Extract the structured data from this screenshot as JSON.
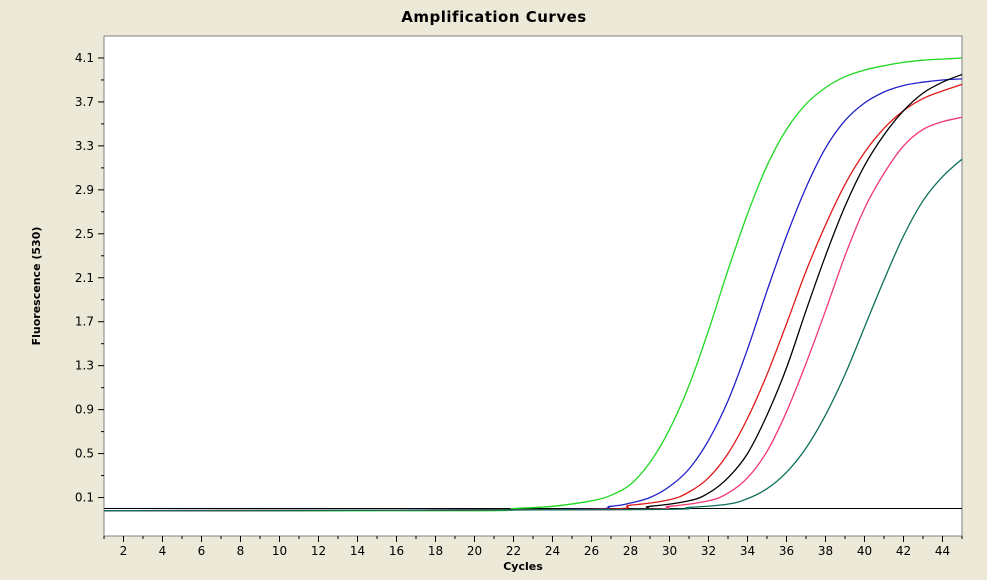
{
  "chart_data": {
    "type": "line",
    "title": "Amplification Curves",
    "xlabel": "Cycles",
    "ylabel": "Fluorescence (530)",
    "xlim": [
      1,
      45
    ],
    "ylim": [
      -0.25,
      4.3
    ],
    "x_ticks": [
      2,
      4,
      6,
      8,
      10,
      12,
      14,
      16,
      18,
      20,
      22,
      24,
      26,
      28,
      30,
      32,
      34,
      36,
      38,
      40,
      42,
      44
    ],
    "y_ticks": [
      0.1,
      0.5,
      0.9,
      1.3,
      1.7,
      2.1,
      2.5,
      2.9,
      3.3,
      3.7,
      4.1
    ],
    "y_tick_labels": [
      "0.1",
      "0.5",
      "0.9",
      "1.3",
      "1.7",
      "2.1",
      "2.5",
      "2.9",
      "3.3",
      "3.7",
      "4.1"
    ],
    "threshold": 0,
    "grid": false,
    "colors": {
      "page_background": "#ece9d8",
      "plot_background": "#ffffff",
      "threshold": "#000000"
    },
    "series": [
      {
        "color": "#1fd81f",
        "x": [
          1,
          20,
          22,
          24,
          26,
          27,
          28,
          29,
          30,
          31,
          32,
          33,
          34,
          35,
          36,
          37,
          38,
          39,
          40,
          41,
          42,
          43,
          44,
          45
        ],
        "y": [
          -0.02,
          -0.02,
          0.0,
          0.02,
          0.07,
          0.12,
          0.22,
          0.42,
          0.72,
          1.12,
          1.62,
          2.17,
          2.68,
          3.12,
          3.45,
          3.68,
          3.83,
          3.93,
          3.99,
          4.03,
          4.06,
          4.08,
          4.09,
          4.1
        ]
      },
      {
        "color": "#2020c8",
        "x": [
          1,
          24,
          27,
          28,
          29,
          30,
          31,
          32,
          33,
          34,
          35,
          36,
          37,
          38,
          39,
          40,
          41,
          42,
          43,
          44,
          45
        ],
        "y": [
          -0.02,
          -0.01,
          0.02,
          0.05,
          0.1,
          0.2,
          0.36,
          0.62,
          0.98,
          1.45,
          1.98,
          2.48,
          2.92,
          3.28,
          3.53,
          3.69,
          3.79,
          3.85,
          3.88,
          3.9,
          3.91
        ]
      },
      {
        "color": "#e01818",
        "x": [
          1,
          25,
          28,
          30,
          31,
          32,
          33,
          34,
          35,
          36,
          37,
          38,
          39,
          40,
          41,
          42,
          43,
          44,
          45
        ],
        "y": [
          -0.02,
          -0.01,
          0.03,
          0.08,
          0.15,
          0.28,
          0.5,
          0.82,
          1.22,
          1.68,
          2.16,
          2.58,
          2.95,
          3.24,
          3.46,
          3.62,
          3.73,
          3.8,
          3.86
        ]
      },
      {
        "color": "#000000",
        "x": [
          1,
          26,
          29,
          31,
          32,
          33,
          34,
          35,
          36,
          37,
          38,
          39,
          40,
          41,
          42,
          43,
          44,
          45
        ],
        "y": [
          -0.02,
          -0.01,
          0.02,
          0.07,
          0.14,
          0.28,
          0.5,
          0.85,
          1.28,
          1.8,
          2.3,
          2.75,
          3.12,
          3.4,
          3.62,
          3.78,
          3.88,
          3.95
        ]
      },
      {
        "color": "#f03870",
        "x": [
          1,
          27,
          30,
          32,
          33,
          34,
          35,
          36,
          37,
          38,
          39,
          40,
          41,
          42,
          43,
          44,
          45
        ],
        "y": [
          -0.02,
          -0.01,
          0.02,
          0.07,
          0.14,
          0.28,
          0.52,
          0.88,
          1.32,
          1.8,
          2.3,
          2.73,
          3.05,
          3.3,
          3.45,
          3.52,
          3.56
        ]
      },
      {
        "color": "#0e6e5a",
        "x": [
          1,
          28,
          31,
          33,
          34,
          35,
          36,
          37,
          38,
          39,
          40,
          41,
          42,
          43,
          44,
          45
        ],
        "y": [
          -0.02,
          -0.01,
          0.01,
          0.04,
          0.09,
          0.18,
          0.33,
          0.55,
          0.85,
          1.22,
          1.65,
          2.08,
          2.48,
          2.8,
          3.02,
          3.18
        ]
      }
    ]
  }
}
